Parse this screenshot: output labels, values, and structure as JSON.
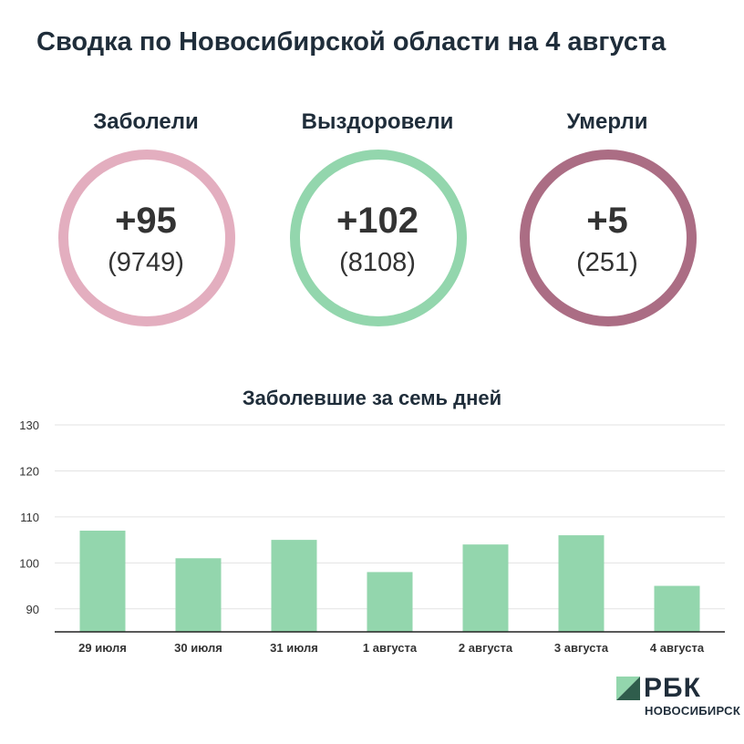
{
  "header": {
    "title": "Сводка по Новосибирской области на 4 августа"
  },
  "stats": [
    {
      "label": "Заболели",
      "delta": "+95",
      "total": "(9749)",
      "ring_color": "#e3aebf"
    },
    {
      "label": "Выздоровели",
      "delta": "+102",
      "total": "(8108)",
      "ring_color": "#93d6ad"
    },
    {
      "label": "Умерли",
      "delta": "+5",
      "total": "(251)",
      "ring_color": "#ab6d84"
    }
  ],
  "chart_data": {
    "type": "bar",
    "title": "Заболевшие за семь дней",
    "categories": [
      "29 июля",
      "30 июля",
      "31 июля",
      "1 августа",
      "2 августа",
      "3 августа",
      "4 августа"
    ],
    "values": [
      107,
      101,
      105,
      98,
      104,
      106,
      95
    ],
    "ylim": [
      85,
      130
    ],
    "yticks": [
      90,
      100,
      110,
      120,
      130
    ],
    "grid": true,
    "bar_color": "#93d6ad"
  },
  "branding": {
    "logo": "РБК",
    "sub": "НОВОСИБИРСК"
  }
}
